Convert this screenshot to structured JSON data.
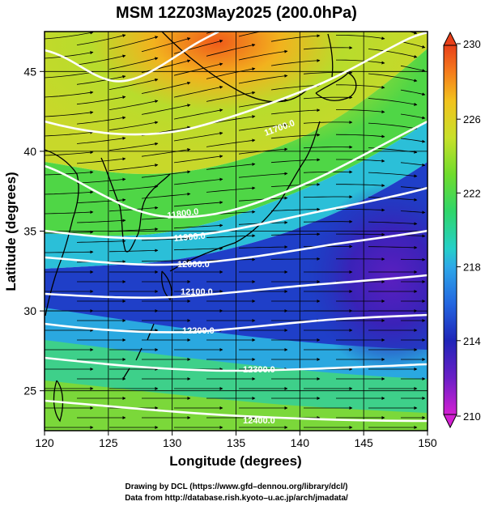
{
  "title": "MSM 12Z03May2025 (200.0hPa)",
  "xaxis": {
    "label": "Longitude (degrees)",
    "range": [
      120,
      150
    ],
    "ticks": [
      "120",
      "125",
      "130",
      "135",
      "140",
      "145",
      "150"
    ]
  },
  "yaxis": {
    "label": "Latitude  (degrees)",
    "range": [
      22.5,
      47.5
    ],
    "ticks": [
      "25",
      "30",
      "35",
      "40",
      "45"
    ]
  },
  "colorbar": {
    "range": [
      210,
      230
    ],
    "ticks": [
      "210",
      "214",
      "218",
      "222",
      "226",
      "230"
    ],
    "colors": [
      "#d21fd2",
      "#6a1fc6",
      "#1f25b8",
      "#2366e0",
      "#2ea8e8",
      "#25d0c8",
      "#2fd66a",
      "#6fdc2c",
      "#c8e02a",
      "#f2c21e",
      "#f57a1c",
      "#e8401a"
    ]
  },
  "contours": [
    {
      "label": "11700.0"
    },
    {
      "label": "11800.0"
    },
    {
      "label": "11900.0"
    },
    {
      "label": "12000.0"
    },
    {
      "label": "12100.0"
    },
    {
      "label": "12200.0"
    },
    {
      "label": "12300.0"
    },
    {
      "label": "12400.0"
    }
  ],
  "credits": {
    "line1": "Drawing by DCL (https://www.gfd–dennou.org/library/dcl/)",
    "line2": "Data from http://database.rish.kyoto–u.ac.jp/arch/jmadata/"
  }
}
